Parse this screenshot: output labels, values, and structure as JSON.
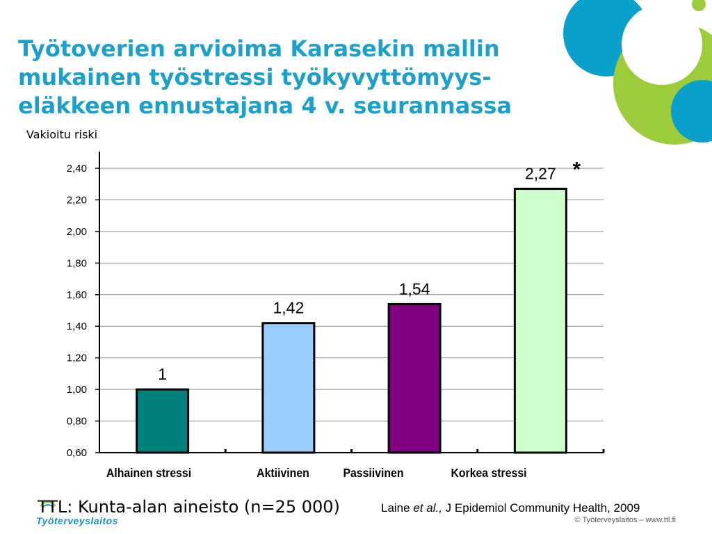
{
  "title": "Työtoverien arvioima Karasekin mallin mukainen työstressi työkyvyttömyys-eläkkeen ennustajana 4 v. seurannassa",
  "colors": {
    "title": "#1da0c8",
    "deco_blue": "#0aa0c9",
    "deco_green": "#9ccb3b",
    "grid": "#8c8c8c"
  },
  "chart_data": {
    "type": "bar",
    "ylabel": "Vakioitu riski",
    "ylim": [
      0.6,
      2.4
    ],
    "yticks": [
      "0,60",
      "0,80",
      "1,00",
      "1,20",
      "1,40",
      "1,60",
      "1,80",
      "2,00",
      "2,20",
      "2,40"
    ],
    "ytick_values": [
      0.6,
      0.8,
      1.0,
      1.2,
      1.4,
      1.6,
      1.8,
      2.0,
      2.2,
      2.4
    ],
    "categories": [
      "Alhainen stressi",
      "Aktiivinen",
      "Passiivinen",
      "Korkea stressi"
    ],
    "values": [
      1,
      1.42,
      1.54,
      2.27
    ],
    "data_labels": [
      "1",
      "1,42",
      "1,54",
      "2,27"
    ],
    "bar_colors": [
      "#00807a",
      "#99ccff",
      "#800080",
      "#ccffcc"
    ],
    "significance_marker": "*",
    "grid": true
  },
  "source": "TTL: Kunta-alan aineisto (n=25 000)",
  "citation": {
    "author": "Laine",
    "etal": "et al.,",
    "journal": "J Epidemiol Community Health, 2009"
  },
  "logo_text": "Työterveyslaitos",
  "copyright": "© Työterveyslaitos – www.ttl.fi"
}
